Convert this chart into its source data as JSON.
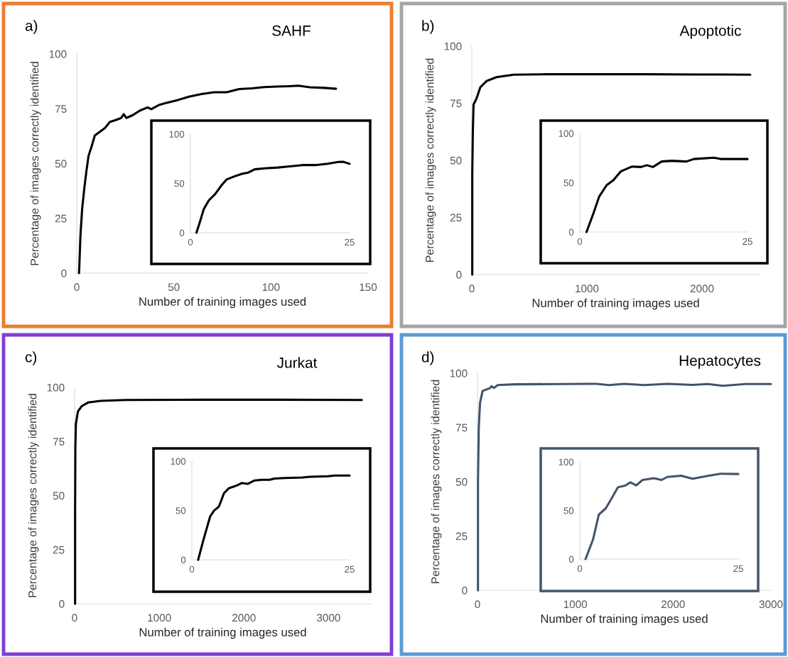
{
  "chart_data": [
    {
      "type": "line",
      "title": "SAHF",
      "annotations": [
        "a)"
      ],
      "xlabel": "Number of training images used",
      "ylabel": "Percentage of images correctly identified",
      "xlim": [
        0,
        150
      ],
      "ylim": [
        0,
        100
      ],
      "xticks": [
        0,
        50,
        100,
        150
      ],
      "yticks": [
        0,
        25,
        50,
        75,
        100
      ],
      "x": [
        1.2,
        1.9,
        2.8,
        3.9,
        5,
        6.1,
        7.6,
        9.3,
        11.9,
        14.5,
        17.1,
        20.3,
        22.9,
        24.2,
        25.5,
        28.7,
        32.6,
        36.5,
        38.4,
        42.3,
        46.2,
        51.4,
        57.8,
        64.3,
        70.8,
        77.2,
        83.7,
        90.2,
        96.6,
        103,
        109.6,
        114.1,
        120,
        127.7,
        133.5
      ],
      "series": [
        {
          "color": "#000000",
          "values": [
            0,
            17,
            29.5,
            38.7,
            46.7,
            53.6,
            57.6,
            62.8,
            64.5,
            66.2,
            69,
            69.9,
            70.8,
            72.5,
            70.8,
            72,
            74.2,
            75.6,
            74.8,
            76.7,
            77.7,
            78.8,
            80.5,
            81.7,
            82.5,
            82.5,
            84,
            84.3,
            84.9,
            85.1,
            85.3,
            85.5,
            84.8,
            84.5,
            84.1
          ]
        }
      ]
    },
    {
      "type": "line",
      "xlim": [
        0,
        25
      ],
      "ylim": [
        0,
        100
      ],
      "xticks": [
        0,
        25
      ],
      "yticks": [
        0,
        50,
        100
      ],
      "x": [
        0.95,
        1.5,
        2.1,
        2.9,
        3.9,
        4.9,
        5.7,
        6.9,
        8.1,
        9.1,
        10.1,
        11.7,
        13.7,
        15.6,
        17.6,
        19.6,
        21.6,
        23.2,
        24,
        25
      ],
      "series": [
        {
          "color": "#000000",
          "values": [
            0,
            11.2,
            24,
            32.9,
            39.3,
            48.2,
            54.1,
            57.1,
            59.7,
            61,
            64.3,
            65.3,
            66.1,
            67.3,
            68.6,
            68.6,
            69.9,
            71.7,
            71.9,
            69.9
          ]
        }
      ]
    },
    {
      "type": "line",
      "title": "Apoptotic",
      "annotations": [
        "b)"
      ],
      "xlabel": "Number of training images used",
      "ylabel": "Percentage of images correctly identified",
      "xlim": [
        0,
        2500
      ],
      "ylim": [
        0,
        100
      ],
      "xticks": [
        0,
        1000,
        2000
      ],
      "yticks": [
        0,
        25,
        50,
        75,
        100
      ],
      "x": [
        4,
        4,
        9,
        15,
        41,
        74,
        128,
        214,
        365,
        646,
        1079,
        1511,
        1943,
        2419
      ],
      "series": [
        {
          "color": "#000000",
          "values": [
            0,
            43.9,
            62.4,
            74.4,
            77.1,
            82,
            84.7,
            86.4,
            87.5,
            87.7,
            87.7,
            87.7,
            87.6,
            87.5
          ]
        }
      ]
    },
    {
      "type": "line",
      "xlim": [
        0,
        25
      ],
      "ylim": [
        0,
        100
      ],
      "xticks": [
        0,
        25
      ],
      "yticks": [
        0,
        50,
        100
      ],
      "x": [
        1,
        2,
        2.9,
        4,
        5,
        6.1,
        7.8,
        9.1,
        10,
        10.9,
        12.2,
        13.7,
        15.9,
        17,
        20,
        21.1,
        25
      ],
      "series": [
        {
          "color": "#000000",
          "values": [
            0,
            18.4,
            36.1,
            47.5,
            52.5,
            61.4,
            66.4,
            65.9,
            67.7,
            65.9,
            71.5,
            72.2,
            71.5,
            74,
            75.3,
            74,
            74
          ]
        }
      ]
    },
    {
      "type": "line",
      "title": "Jurkat",
      "annotations": [
        "c)"
      ],
      "xlabel": "Number of training images used",
      "ylabel": "Percentage of images correctly identified",
      "xlim": [
        0,
        3500
      ],
      "ylim": [
        0,
        100
      ],
      "xticks": [
        0,
        1000,
        2000,
        3000
      ],
      "yticks": [
        0,
        25,
        50,
        75,
        100
      ],
      "x": [
        6,
        6,
        9,
        15,
        39,
        83,
        158,
        307,
        605,
        1499,
        2394,
        3392
      ],
      "series": [
        {
          "color": "#000000",
          "values": [
            0,
            43.6,
            72.7,
            83.1,
            88.9,
            91.3,
            93,
            93.8,
            94.2,
            94.3,
            94.3,
            94.2
          ]
        }
      ]
    },
    {
      "type": "line",
      "xlim": [
        0,
        25
      ],
      "ylim": [
        0,
        100
      ],
      "xticks": [
        0,
        25
      ],
      "yticks": [
        0,
        50,
        100
      ],
      "x": [
        1,
        1.9,
        2.9,
        3.5,
        4.3,
        5.1,
        5.9,
        7.1,
        7.9,
        8.9,
        9.9,
        11.1,
        12.3,
        13.1,
        14.7,
        17.5,
        18.7,
        21.5,
        22.7,
        25
      ],
      "series": [
        {
          "color": "#000000",
          "values": [
            0,
            21.7,
            43.9,
            49.7,
            54.1,
            67.6,
            72.7,
            75.3,
            77.8,
            77,
            80.4,
            81.1,
            81.1,
            82.4,
            82.9,
            83.4,
            84.2,
            84.7,
            85.5,
            85.5
          ]
        }
      ]
    },
    {
      "type": "line",
      "title": "Hepatocytes",
      "annotations": [
        "d)"
      ],
      "xlabel": "Number of training images used",
      "ylabel": "Percentage of images correctly identified",
      "xlim": [
        0,
        3000
      ],
      "ylim": [
        0,
        100
      ],
      "xticks": [
        0,
        1000,
        2000,
        3000
      ],
      "yticks": [
        0,
        25,
        50,
        75,
        100
      ],
      "x": [
        5,
        5,
        13,
        26,
        52,
        129,
        142,
        168,
        207,
        388,
        440,
        1112,
        1215,
        1345,
        1500,
        1707,
        1940,
        2198,
        2353,
        2508,
        2741,
        3000
      ],
      "series": [
        {
          "color": "#44546a",
          "values": [
            0,
            49.8,
            74.9,
            86.3,
            91.8,
            93.2,
            94,
            93.2,
            94.5,
            94.9,
            94.9,
            95.1,
            95.1,
            94.5,
            95.1,
            94.5,
            95.1,
            94.6,
            95,
            94.2,
            95,
            95
          ]
        }
      ]
    },
    {
      "type": "line",
      "xlim": [
        0,
        25
      ],
      "ylim": [
        0,
        100
      ],
      "xticks": [
        0,
        25
      ],
      "yticks": [
        0,
        50,
        100
      ],
      "x": [
        0.9,
        2.1,
        3,
        4.1,
        5,
        6,
        7.2,
        8,
        8.9,
        9.9,
        11.7,
        12.9,
        13.8,
        16,
        17.8,
        20.3,
        22.2,
        25
      ],
      "series": [
        {
          "color": "#44546a",
          "values": [
            0,
            20.4,
            45.8,
            52.2,
            62.3,
            73.8,
            75.8,
            78.9,
            75.8,
            81.4,
            83.2,
            81.4,
            84.5,
            85.8,
            82.7,
            85.8,
            87.8,
            87.5
          ]
        }
      ]
    }
  ]
}
